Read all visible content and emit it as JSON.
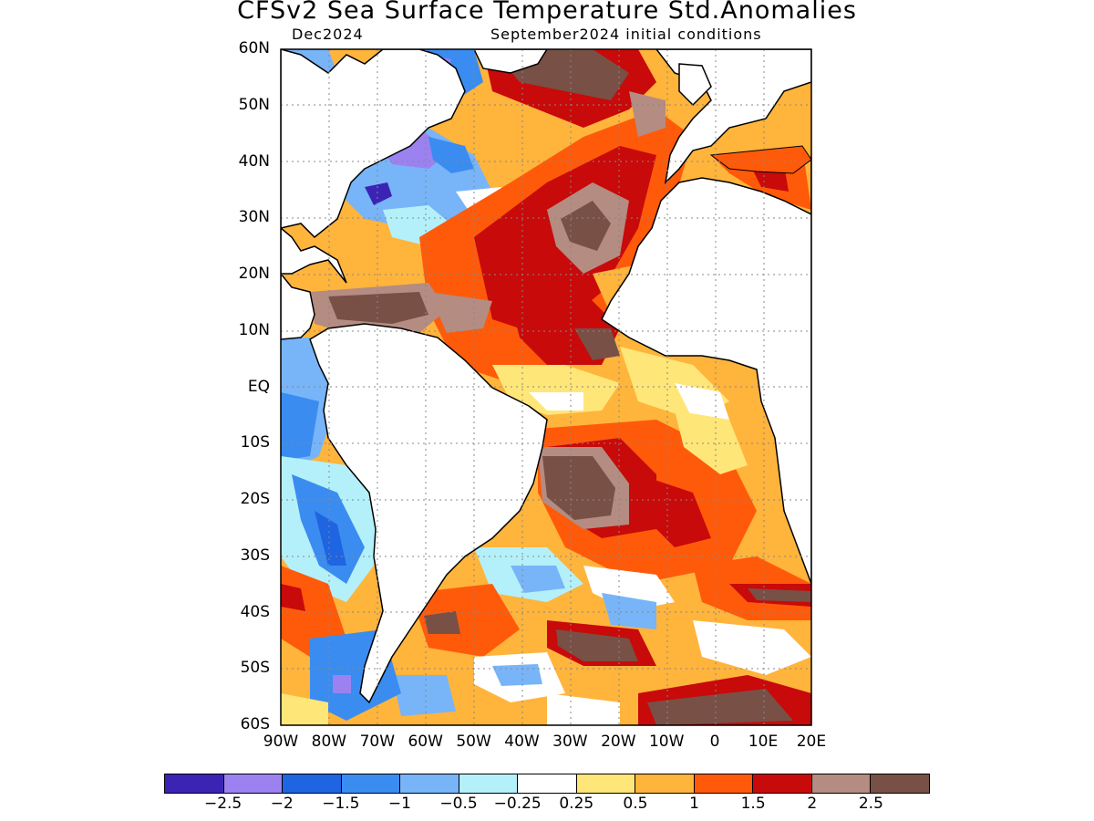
{
  "title": "CFSv2 Sea Surface Temperature Std.Anomalies",
  "subtitle_left": "Dec2024",
  "subtitle_right": "September2024 initial conditions",
  "lat_labels": [
    "60N",
    "50N",
    "40N",
    "30N",
    "20N",
    "10N",
    "EQ",
    "10S",
    "20S",
    "30S",
    "40S",
    "50S",
    "60S"
  ],
  "lon_labels": [
    "90W",
    "80W",
    "70W",
    "60W",
    "50W",
    "40W",
    "30W",
    "20W",
    "10W",
    "0",
    "10E",
    "20E"
  ],
  "colorbar": {
    "colors": [
      "#3b24b4",
      "#9b82f0",
      "#1f64e0",
      "#3a8cf0",
      "#78b4f8",
      "#b4f0fa",
      "#ffffff",
      "#ffe678",
      "#ffb43c",
      "#ff5a0a",
      "#c80a0a",
      "#b48c82",
      "#785046"
    ],
    "labels": [
      "-2.5",
      "-2",
      "-1.5",
      "-1",
      "-0.5",
      "-0.25",
      "0.25",
      "0.5",
      "1",
      "1.5",
      "2",
      "2.5"
    ]
  }
}
